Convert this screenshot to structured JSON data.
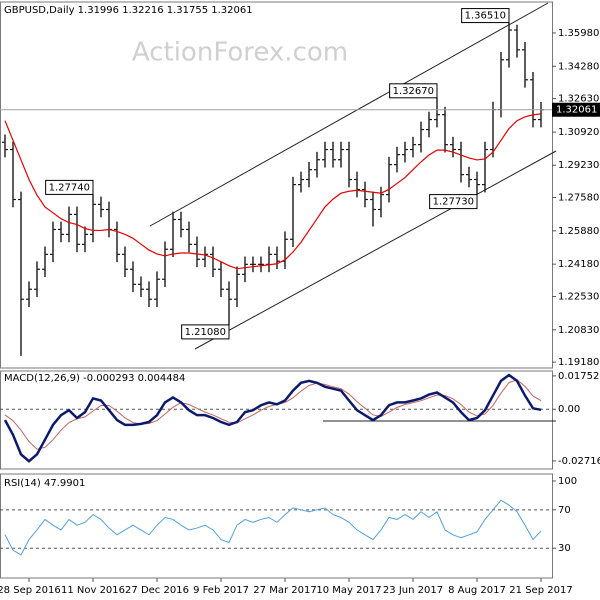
{
  "chart_data": [
    {
      "type": "ohlc",
      "title": "GBPUSD,Daily 1.31996 1.32216 1.31755 1.32061",
      "watermark": "ActionForex.com",
      "color": "#1a1a1a",
      "categories": [
        null,
        null,
        null,
        "28 Sep 2016",
        null,
        null,
        null,
        null,
        null,
        null,
        null,
        "11 Nov 2016",
        null,
        null,
        null,
        null,
        null,
        null,
        null,
        "27 Dec 2016",
        null,
        null,
        null,
        null,
        null,
        null,
        null,
        "9 Feb 2017",
        null,
        null,
        null,
        null,
        null,
        null,
        null,
        "27 Mar 2017",
        null,
        null,
        null,
        null,
        null,
        null,
        null,
        "10 May 2017",
        null,
        null,
        null,
        null,
        null,
        null,
        null,
        "23 Jun 2017",
        null,
        null,
        null,
        null,
        null,
        null,
        null,
        "8 Aug 2017",
        null,
        null,
        null,
        null,
        null,
        null,
        null,
        "21 Sep 2017"
      ],
      "open": [
        1.304,
        1.3003,
        1.2748,
        1.2239,
        1.229,
        1.2392,
        1.2468,
        1.2595,
        1.257,
        1.2672,
        1.2519,
        1.257,
        1.2723,
        1.2697,
        1.2595,
        1.2468,
        1.2392,
        1.2315,
        1.229,
        1.2239,
        1.2341,
        1.2494,
        1.2646,
        1.2595,
        1.2519,
        1.2443,
        1.2468,
        1.2392,
        1.229,
        1.2239,
        1.2366,
        1.2417,
        1.2417,
        1.2417,
        1.2468,
        1.2433,
        1.2545,
        1.2824,
        1.285,
        1.29,
        1.2951,
        1.3003,
        1.2951,
        1.3003,
        1.285,
        1.2799,
        1.2748,
        1.2697,
        1.2773,
        1.2926,
        1.2977,
        1.3003,
        1.3028,
        1.3105,
        1.3156,
        1.3181,
        1.3028,
        1.3003,
        1.2875,
        1.285,
        1.2824,
        1.3003,
        1.3207,
        1.3461,
        1.3613,
        1.3512,
        1.3359,
        1.3156
      ],
      "high": [
        1.308,
        1.3043,
        1.2788,
        1.233,
        1.2432,
        1.2508,
        1.2635,
        1.2635,
        1.2712,
        1.2712,
        1.261,
        1.2774,
        1.2763,
        1.2737,
        1.2635,
        1.2508,
        1.2432,
        1.2355,
        1.233,
        1.2381,
        1.2534,
        1.2686,
        1.2686,
        1.2635,
        1.2559,
        1.2508,
        1.2508,
        1.2432,
        1.233,
        1.2406,
        1.2457,
        1.2457,
        1.2457,
        1.2508,
        1.2508,
        1.2585,
        1.2864,
        1.289,
        1.294,
        1.2991,
        1.3043,
        1.3043,
        1.3043,
        1.3043,
        1.289,
        1.2839,
        1.2788,
        1.2813,
        1.2966,
        1.3017,
        1.3043,
        1.3068,
        1.3145,
        1.3196,
        1.3267,
        1.3221,
        1.3068,
        1.3043,
        1.2915,
        1.289,
        1.3043,
        1.3247,
        1.3501,
        1.3651,
        1.364,
        1.3552,
        1.3399,
        1.3246
      ],
      "low": [
        1.2963,
        1.2708,
        1.195,
        1.2199,
        1.225,
        1.2352,
        1.2428,
        1.253,
        1.253,
        1.2479,
        1.2479,
        1.253,
        1.2657,
        1.2555,
        1.2428,
        1.2352,
        1.2275,
        1.225,
        1.2199,
        1.2199,
        1.2301,
        1.2454,
        1.2555,
        1.2479,
        1.2403,
        1.2403,
        1.2352,
        1.225,
        1.2108,
        1.2199,
        1.2326,
        1.2377,
        1.2377,
        1.2377,
        1.2393,
        1.2393,
        1.2505,
        1.2784,
        1.281,
        1.286,
        1.2911,
        1.2911,
        1.2911,
        1.281,
        1.2759,
        1.2708,
        1.261,
        1.2657,
        1.2733,
        1.2886,
        1.2937,
        1.2963,
        1.2988,
        1.3065,
        1.3116,
        1.2988,
        1.2963,
        1.2835,
        1.281,
        1.2773,
        1.2784,
        1.2963,
        1.3167,
        1.3421,
        1.3472,
        1.3319,
        1.3116,
        1.3116
      ],
      "close": [
        1.3003,
        1.2748,
        1.2239,
        1.229,
        1.2392,
        1.2468,
        1.2595,
        1.257,
        1.2672,
        1.2519,
        1.257,
        1.2723,
        1.2697,
        1.2595,
        1.2468,
        1.2392,
        1.2315,
        1.229,
        1.2239,
        1.2341,
        1.2494,
        1.2646,
        1.2595,
        1.2519,
        1.2443,
        1.2468,
        1.2392,
        1.229,
        1.2239,
        1.2366,
        1.2417,
        1.2417,
        1.2417,
        1.2468,
        1.2433,
        1.2545,
        1.2824,
        1.285,
        1.29,
        1.2951,
        1.3003,
        1.2951,
        1.3003,
        1.285,
        1.2799,
        1.2748,
        1.2697,
        1.2773,
        1.2926,
        1.2977,
        1.3003,
        1.3028,
        1.3105,
        1.3156,
        1.3181,
        1.3028,
        1.3003,
        1.2875,
        1.285,
        1.2824,
        1.3003,
        1.3207,
        1.3461,
        1.3613,
        1.3512,
        1.3359,
        1.3156,
        1.3206
      ],
      "ma": {
        "color": "#e60000",
        "values": [
          1.315,
          1.305,
          1.295,
          1.285,
          1.277,
          1.271,
          1.268,
          1.265,
          1.263,
          1.262,
          1.26,
          1.259,
          1.259,
          1.2595,
          1.2585,
          1.257,
          1.255,
          1.252,
          1.249,
          1.247,
          1.246,
          1.247,
          1.2475,
          1.2475,
          1.247,
          1.2465,
          1.245,
          1.243,
          1.241,
          1.2395,
          1.24,
          1.2405,
          1.241,
          1.2415,
          1.242,
          1.244,
          1.248,
          1.253,
          1.259,
          1.265,
          1.271,
          1.275,
          1.278,
          1.279,
          1.2795,
          1.279,
          1.2785,
          1.278,
          1.28,
          1.283,
          1.286,
          1.29,
          1.294,
          1.2975,
          1.3,
          1.3,
          1.299,
          1.2975,
          1.296,
          1.295,
          1.2955,
          1.299,
          1.305,
          1.311,
          1.315,
          1.317,
          1.318,
          1.3185
        ]
      },
      "annotations": [
        {
          "value": 1.3651,
          "label": "1.36510"
        },
        {
          "value": 1.3267,
          "label": "1.32670"
        },
        {
          "value": 1.2774,
          "label": "1.27740"
        },
        {
          "value": 1.2773,
          "label": "1.27730"
        },
        {
          "value": 1.2108,
          "label": "1.21080"
        }
      ],
      "last_price": {
        "value": 1.32061,
        "label": "1.32061"
      },
      "ylim": [
        1.1888,
        1.3756
      ],
      "yticks": [
        {
          "value": 1.3598,
          "label": "1.35980"
        },
        {
          "value": 1.3428,
          "label": "1.34280"
        },
        {
          "value": 1.3263,
          "label": "1.32630"
        },
        {
          "value": 1.3092,
          "label": "1.30920"
        },
        {
          "value": 1.2923,
          "label": "1.29230"
        },
        {
          "value": 1.2758,
          "label": "1.27580"
        },
        {
          "value": 1.2588,
          "label": "1.25880"
        },
        {
          "value": 1.2418,
          "label": "1.24180"
        },
        {
          "value": 1.2253,
          "label": "1.22530"
        },
        {
          "value": 1.2083,
          "label": "1.20830"
        },
        {
          "value": 1.1918,
          "label": "1.19180"
        }
      ]
    },
    {
      "type": "macd",
      "title": "MACD(12,26,9) -0.000293 0.004484",
      "macd": {
        "color": "#0c1a6e",
        "values": [
          -0.0057,
          -0.0134,
          -0.0237,
          -0.0273,
          -0.0237,
          -0.016,
          -0.0082,
          -0.0031,
          -0.0005,
          -0.0046,
          -0.0015,
          0.0057,
          0.0046,
          -0.0005,
          -0.0057,
          -0.0082,
          -0.0082,
          -0.0077,
          -0.0067,
          -0.0031,
          0.0036,
          0.0062,
          0.0036,
          -0.0005,
          -0.0031,
          -0.0031,
          -0.0046,
          -0.0067,
          -0.0082,
          -0.0067,
          -0.0015,
          -0.0005,
          0.0021,
          0.0036,
          0.0026,
          0.0046,
          0.0098,
          0.0139,
          0.0149,
          0.0139,
          0.0118,
          0.0108,
          0.0098,
          0.0046,
          -0.0005,
          -0.0031,
          -0.0057,
          -0.0031,
          0.0021,
          0.0036,
          0.0036,
          0.0046,
          0.0057,
          0.0077,
          0.0088,
          0.0062,
          0.0036,
          -0.0015,
          -0.0057,
          -0.0046,
          -0.0005,
          0.0072,
          0.0149,
          0.018,
          0.0149,
          0.0072,
          0.0005,
          -0.0003
        ]
      },
      "signal": {
        "color": "#c86464",
        "values": [
          -0.003,
          -0.006,
          -0.011,
          -0.017,
          -0.021,
          -0.02,
          -0.016,
          -0.011,
          -0.007,
          -0.005,
          -0.004,
          -0.001,
          0.002,
          0.002,
          -0.001,
          -0.0045,
          -0.007,
          -0.0078,
          -0.0075,
          -0.006,
          -0.0025,
          0.001,
          0.0035,
          0.0025,
          0.0005,
          -0.0015,
          -0.003,
          -0.005,
          -0.0068,
          -0.0072,
          -0.005,
          -0.003,
          -0.0005,
          0.0015,
          0.0025,
          0.0035,
          0.006,
          0.0095,
          0.0125,
          0.0138,
          0.013,
          0.0118,
          0.0108,
          0.008,
          0.004,
          0.0005,
          -0.003,
          -0.0038,
          -0.0015,
          0.001,
          0.0025,
          0.0035,
          0.0045,
          0.006,
          0.0075,
          0.0072,
          0.0055,
          0.0025,
          -0.0015,
          -0.0035,
          -0.0025,
          0.002,
          0.0085,
          0.014,
          0.0155,
          0.012,
          0.007,
          0.0045
        ]
      },
      "levels": [
        0
      ],
      "ylim": [
        -0.0314,
        0.0201
      ],
      "yticks": [
        0.017521,
        {
          "value": 0,
          "label": "0.00"
        },
        -0.027169
      ]
    },
    {
      "type": "rsi",
      "title": "RSI(14) 47.9901",
      "color": "#4fa3e0",
      "values": [
        44,
        28,
        23,
        39,
        49,
        60,
        54,
        49,
        60,
        54,
        57,
        65,
        60,
        51,
        44,
        49,
        54,
        49,
        44,
        54,
        62,
        60,
        54,
        49,
        51,
        54,
        49,
        39,
        36,
        54,
        60,
        57,
        60,
        62,
        57,
        65,
        72,
        70,
        68,
        70,
        72,
        65,
        62,
        57,
        49,
        44,
        39,
        49,
        62,
        60,
        65,
        60,
        68,
        62,
        68,
        49,
        44,
        41,
        44,
        47,
        60,
        70,
        80,
        75,
        68,
        54,
        39,
        48
      ],
      "levels": [
        70,
        30
      ],
      "ylim": [
        -1,
        107.3
      ],
      "yticks": [
        100,
        70,
        30
      ]
    }
  ]
}
